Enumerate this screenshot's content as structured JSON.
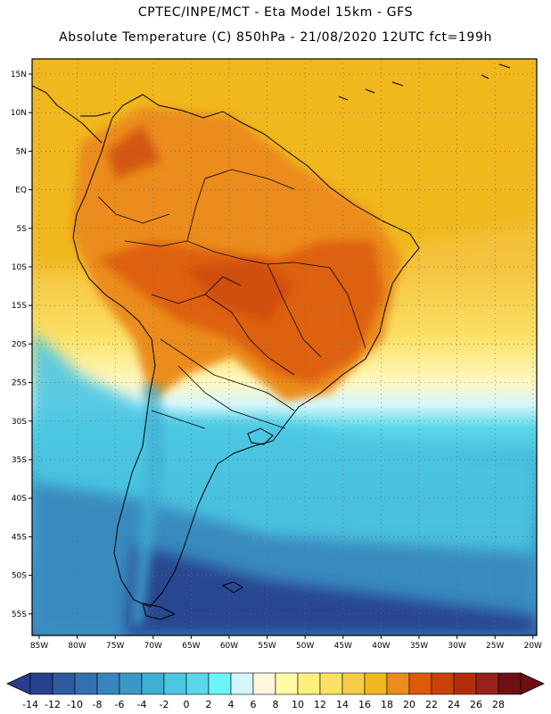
{
  "header": {
    "line1": "CPTEC/INPE/MCT -  Eta Model 15km - GFS",
    "line2": "Absolute Temperature (C) 850hPa - 21/08/2020 12UTC fct=199h"
  },
  "axes": {
    "lat_labels": [
      "15N",
      "10N",
      "5N",
      "EQ",
      "5S",
      "10S",
      "15S",
      "20S",
      "25S",
      "30S",
      "35S",
      "40S",
      "45S",
      "50S",
      "55S"
    ],
    "lon_labels": [
      "85W",
      "80W",
      "75W",
      "70W",
      "65W",
      "60W",
      "55W",
      "50W",
      "45W",
      "40W",
      "35W",
      "30W",
      "25W",
      "20W"
    ]
  },
  "colorbar": {
    "labels": [
      "-14",
      "-12",
      "-10",
      "-8",
      "-6",
      "-4",
      "-2",
      "0",
      "2",
      "4",
      "6",
      "8",
      "10",
      "12",
      "14",
      "16",
      "18",
      "20",
      "22",
      "24",
      "26",
      "28"
    ],
    "under_color": "#2a3c8c",
    "over_color": "#6e0f14",
    "colors": [
      "#27418c",
      "#2e5aa0",
      "#3370b0",
      "#3785bc",
      "#3a98c6",
      "#3fafd4",
      "#4cc6e2",
      "#5ad8ea",
      "#6af5f8",
      "#d2f6fb",
      "#fff6dc",
      "#fffaa6",
      "#fff07e",
      "#fbe064",
      "#f6cc48",
      "#f0b81e",
      "#eb8c1e",
      "#dc5a0a",
      "#c8420a",
      "#b42d0a",
      "#962319",
      "#6e0f14"
    ]
  }
}
